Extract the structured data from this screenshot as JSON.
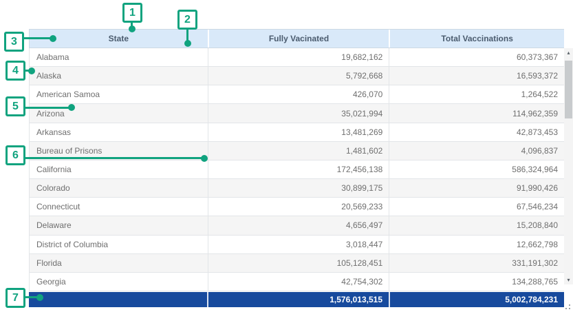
{
  "colors": {
    "callout": "#10a37f",
    "header_bg": "#d9e9f9",
    "header_text": "#4a5b6e",
    "body_text": "#6e6e6e",
    "row_alt_bg": "#f5f5f5",
    "grid_line": "#e2e5e8",
    "totals_bg": "#174a9d",
    "totals_text": "#ffffff"
  },
  "table": {
    "columns": [
      "State",
      "Fully Vacinated",
      "Total Vaccinations"
    ],
    "rows": [
      {
        "state": "Alabama",
        "fully_vaccinated": "19,682,162",
        "total_vaccinations": "60,373,367"
      },
      {
        "state": "Alaska",
        "fully_vaccinated": "5,792,668",
        "total_vaccinations": "16,593,372"
      },
      {
        "state": "American Samoa",
        "fully_vaccinated": "426,070",
        "total_vaccinations": "1,264,522"
      },
      {
        "state": "Arizona",
        "fully_vaccinated": "35,021,994",
        "total_vaccinations": "114,962,359"
      },
      {
        "state": "Arkansas",
        "fully_vaccinated": "13,481,269",
        "total_vaccinations": "42,873,453"
      },
      {
        "state": "Bureau of Prisons",
        "fully_vaccinated": "1,481,602",
        "total_vaccinations": "4,096,837"
      },
      {
        "state": "California",
        "fully_vaccinated": "172,456,138",
        "total_vaccinations": "586,324,964"
      },
      {
        "state": "Colorado",
        "fully_vaccinated": "30,899,175",
        "total_vaccinations": "91,990,426"
      },
      {
        "state": "Connecticut",
        "fully_vaccinated": "20,569,233",
        "total_vaccinations": "67,546,234"
      },
      {
        "state": "Delaware",
        "fully_vaccinated": "4,656,497",
        "total_vaccinations": "15,208,840"
      },
      {
        "state": "District of Columbia",
        "fully_vaccinated": "3,018,447",
        "total_vaccinations": "12,662,798"
      },
      {
        "state": "Florida",
        "fully_vaccinated": "105,128,451",
        "total_vaccinations": "331,191,302"
      },
      {
        "state": "Georgia",
        "fully_vaccinated": "42,754,302",
        "total_vaccinations": "134,288,765"
      }
    ],
    "totals": {
      "state": "",
      "fully_vaccinated": "1,576,013,515",
      "total_vaccinations": "5,002,784,231"
    }
  },
  "scrollbar": {
    "up_glyph": "▴",
    "down_glyph": "▾"
  },
  "annotations": {
    "markers": [
      {
        "label": "1"
      },
      {
        "label": "2"
      },
      {
        "label": "3"
      },
      {
        "label": "4"
      },
      {
        "label": "5"
      },
      {
        "label": "6"
      },
      {
        "label": "7"
      }
    ]
  }
}
